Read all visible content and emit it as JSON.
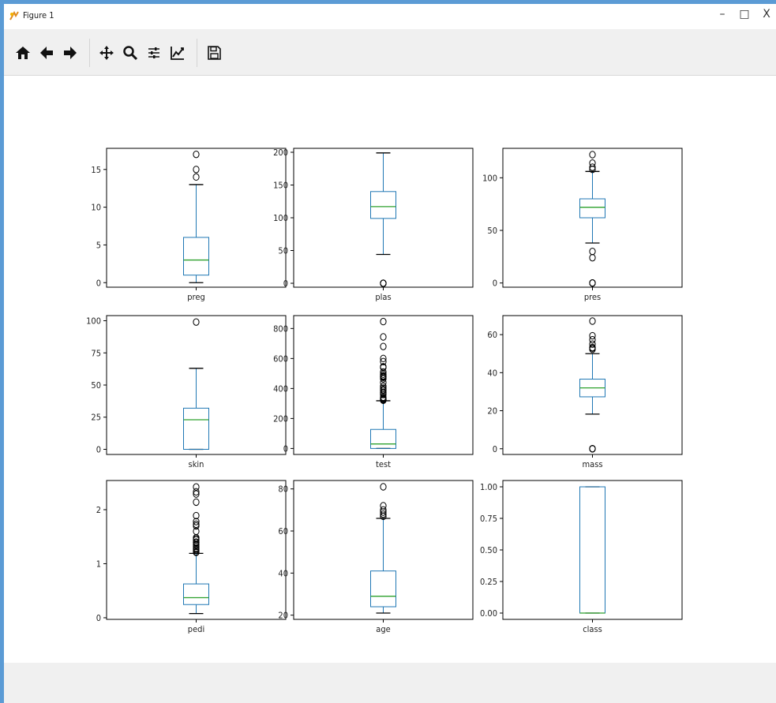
{
  "window": {
    "title": "Figure 1",
    "controls": {
      "minimize": "–",
      "maximize": "□",
      "close": "X"
    }
  },
  "toolbar": {
    "buttons": [
      "home-icon",
      "back-icon",
      "forward-icon",
      "pan-icon",
      "zoom-icon",
      "configure-subplots-icon",
      "edit-axes-icon",
      "save-icon"
    ]
  },
  "colors": {
    "box": "#1f77b4",
    "median": "#2ca02c",
    "frame_border": "#5b9bd5",
    "toolbar_bg": "#f0f0f0"
  },
  "chart_data": [
    {
      "type": "box",
      "label": "preg",
      "ylim": [
        -0.6,
        17.8
      ],
      "ticks": [
        0,
        5,
        10,
        15
      ],
      "tick_labels": [
        "0",
        "5",
        "10",
        "15"
      ],
      "whisker_low": 0,
      "q1": 1,
      "median": 3,
      "q3": 6,
      "whisker_high": 13,
      "outliers": [
        14,
        15,
        17
      ]
    },
    {
      "type": "box",
      "label": "plas",
      "ylim": [
        -6,
        206
      ],
      "ticks": [
        0,
        50,
        100,
        150,
        200
      ],
      "tick_labels": [
        "0",
        "50",
        "100",
        "150",
        "200"
      ],
      "whisker_low": 44,
      "q1": 99,
      "median": 117,
      "q3": 140,
      "whisker_high": 199,
      "outliers": [
        0,
        0,
        0,
        0,
        0
      ]
    },
    {
      "type": "box",
      "label": "pres",
      "ylim": [
        -4,
        128
      ],
      "ticks": [
        0,
        50,
        100
      ],
      "tick_labels": [
        "0",
        "50",
        "100"
      ],
      "whisker_low": 38,
      "q1": 62,
      "median": 72,
      "q3": 80,
      "whisker_high": 106,
      "outliers": [
        0,
        0,
        0,
        24,
        30,
        108,
        110,
        114,
        122
      ]
    },
    {
      "type": "box",
      "label": "skin",
      "ylim": [
        -4,
        104
      ],
      "ticks": [
        0,
        25,
        50,
        75,
        100
      ],
      "tick_labels": [
        "0",
        "25",
        "50",
        "75",
        "100"
      ],
      "whisker_low": 0,
      "q1": 0,
      "median": 23,
      "q3": 32,
      "whisker_high": 63,
      "outliers": [
        99
      ]
    },
    {
      "type": "box",
      "label": "test",
      "ylim": [
        -40,
        886
      ],
      "ticks": [
        0,
        200,
        400,
        600,
        800
      ],
      "tick_labels": [
        "0",
        "200",
        "400",
        "600",
        "800"
      ],
      "whisker_low": 0,
      "q1": 0,
      "median": 30,
      "q3": 127,
      "whisker_high": 318,
      "outliers": [
        321,
        325,
        326,
        328,
        330,
        335,
        342,
        360,
        370,
        375,
        387,
        392,
        402,
        415,
        440,
        465,
        474,
        478,
        480,
        485,
        495,
        510,
        540,
        543,
        545,
        579,
        600,
        680,
        744,
        846
      ]
    },
    {
      "type": "box",
      "label": "mass",
      "ylim": [
        -3,
        70
      ],
      "ticks": [
        0,
        20,
        40,
        60
      ],
      "tick_labels": [
        "0",
        "20",
        "40",
        "60"
      ],
      "whisker_low": 18.2,
      "q1": 27.3,
      "median": 32,
      "q3": 36.6,
      "whisker_high": 50,
      "outliers": [
        0,
        0,
        0,
        0,
        0,
        52.3,
        52.9,
        53.2,
        55,
        57.3,
        59.4,
        67.1
      ]
    },
    {
      "type": "box",
      "label": "pedi",
      "ylim": [
        -0.03,
        2.54
      ],
      "ticks": [
        0,
        1,
        2
      ],
      "tick_labels": [
        "0",
        "1",
        "2"
      ],
      "whisker_low": 0.078,
      "q1": 0.244,
      "median": 0.372,
      "q3": 0.626,
      "whisker_high": 1.191,
      "outliers": [
        1.21,
        1.22,
        1.25,
        1.26,
        1.28,
        1.29,
        1.32,
        1.35,
        1.39,
        1.39,
        1.4,
        1.44,
        1.46,
        1.48,
        1.6,
        1.7,
        1.73,
        1.78,
        1.89,
        2.14,
        2.29,
        2.33,
        2.42
      ]
    },
    {
      "type": "box",
      "label": "age",
      "ylim": [
        18,
        84
      ],
      "ticks": [
        20,
        40,
        60,
        80
      ],
      "tick_labels": [
        "20",
        "40",
        "60",
        "80"
      ],
      "whisker_low": 21,
      "q1": 24,
      "median": 29,
      "q3": 41,
      "whisker_high": 66,
      "outliers": [
        67,
        67,
        68,
        69,
        70,
        72,
        81
      ]
    },
    {
      "type": "box",
      "label": "class",
      "ylim": [
        -0.05,
        1.05
      ],
      "ticks": [
        0,
        0.25,
        0.5,
        0.75,
        1.0
      ],
      "tick_labels": [
        "0.00",
        "0.25",
        "0.50",
        "0.75",
        "1.00"
      ],
      "whisker_low": 0,
      "q1": 0,
      "median": 0,
      "q3": 1,
      "whisker_high": 1,
      "outliers": []
    }
  ]
}
